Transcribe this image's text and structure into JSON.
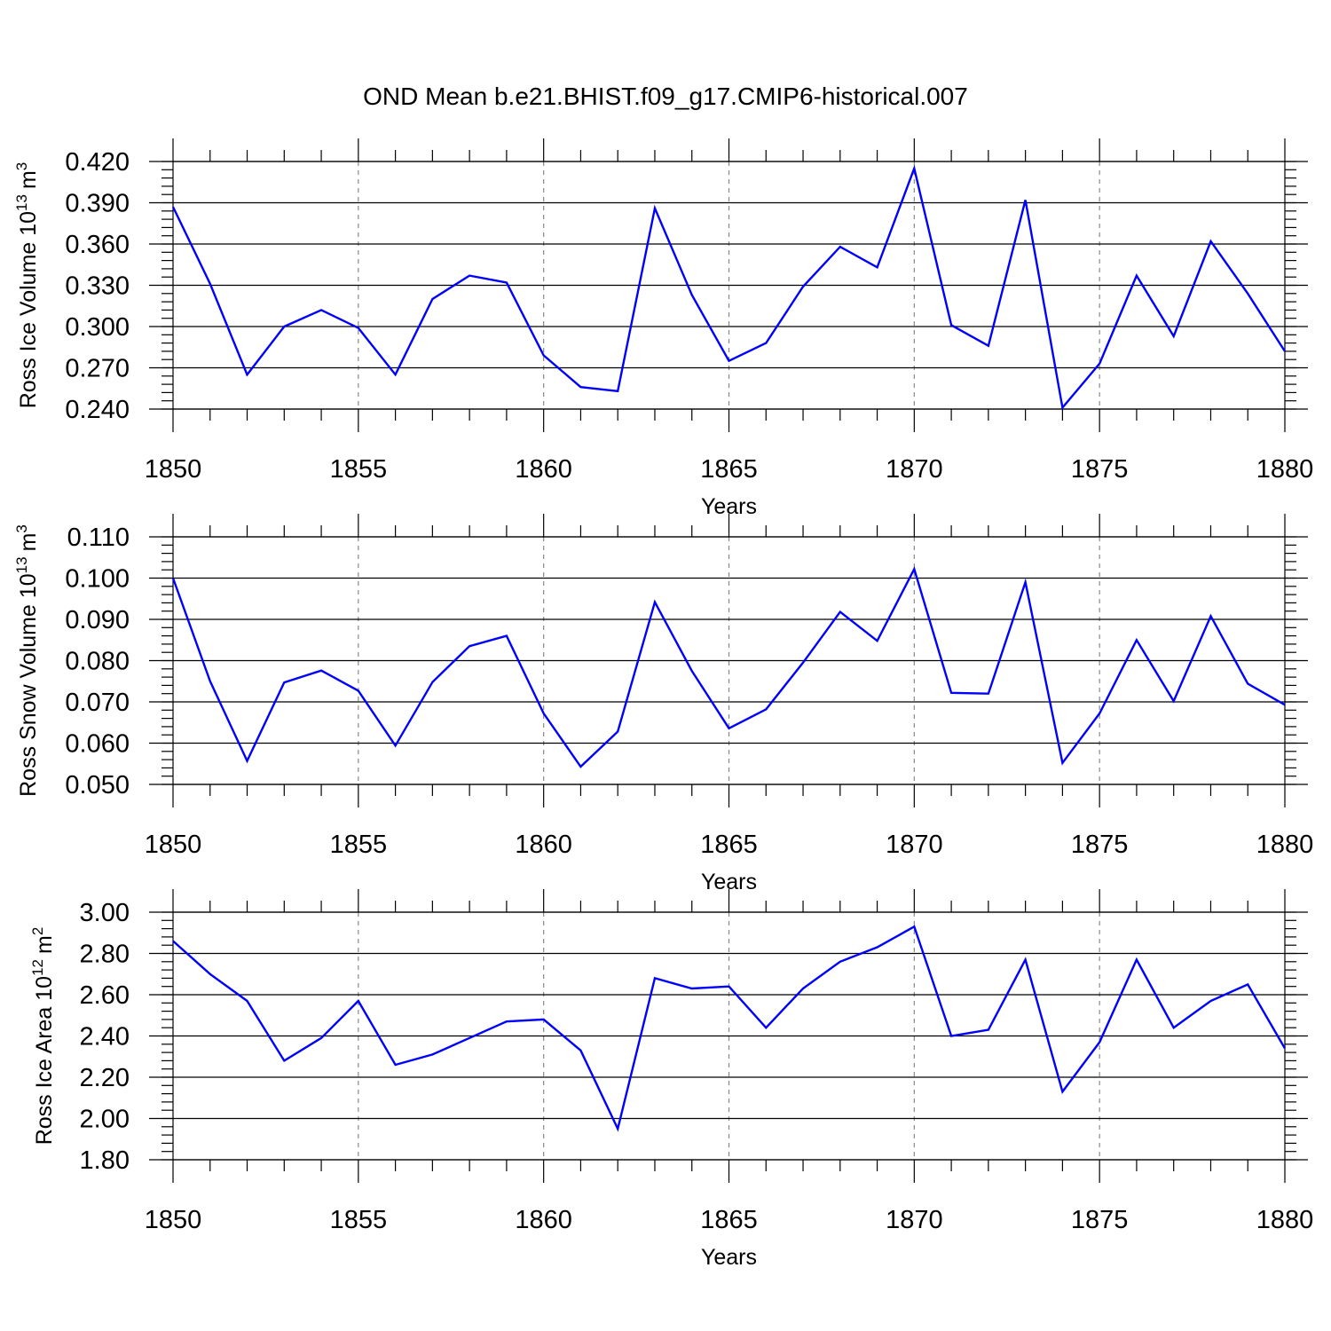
{
  "figure": {
    "title": "OND Mean b.e21.BHIST.f09_g17.CMIP6-historical.007"
  },
  "chart_data": [
    {
      "type": "line",
      "ylabel_main": "Ross Ice Volume 10",
      "ylabel_sup": "13",
      "ylabel_unit": "m",
      "ylabel_unit_sup": "3",
      "xlabel": "Years",
      "xlim": [
        1850,
        1880
      ],
      "ylim": [
        0.24,
        0.42
      ],
      "yticks": [
        "0.240",
        "0.270",
        "0.300",
        "0.330",
        "0.360",
        "0.390",
        "0.420"
      ],
      "xticks": [
        "1850",
        "1855",
        "1860",
        "1865",
        "1870",
        "1875",
        "1880"
      ],
      "line_color": "#0000ff",
      "x": [
        1850,
        1851,
        1852,
        1853,
        1854,
        1855,
        1856,
        1857,
        1858,
        1859,
        1860,
        1861,
        1862,
        1863,
        1864,
        1865,
        1866,
        1867,
        1868,
        1869,
        1870,
        1871,
        1872,
        1873,
        1874,
        1875,
        1876,
        1877,
        1878,
        1879,
        1880
      ],
      "values": [
        0.387,
        0.331,
        0.265,
        0.3,
        0.312,
        0.299,
        0.265,
        0.32,
        0.337,
        0.332,
        0.279,
        0.256,
        0.253,
        0.386,
        0.323,
        0.275,
        0.288,
        0.329,
        0.358,
        0.343,
        0.415,
        0.301,
        0.286,
        0.392,
        0.241,
        0.273,
        0.337,
        0.293,
        0.362,
        0.324,
        0.282
      ]
    },
    {
      "type": "line",
      "ylabel_main": "Ross Snow Volume 10",
      "ylabel_sup": "13",
      "ylabel_unit": "m",
      "ylabel_unit_sup": "3",
      "xlabel": "Years",
      "xlim": [
        1850,
        1880
      ],
      "ylim": [
        0.05,
        0.11
      ],
      "yticks": [
        "0.050",
        "0.060",
        "0.070",
        "0.080",
        "0.090",
        "0.100",
        "0.110"
      ],
      "xticks": [
        "1850",
        "1855",
        "1860",
        "1865",
        "1870",
        "1875",
        "1880"
      ],
      "line_color": "#0000ff",
      "x": [
        1850,
        1851,
        1852,
        1853,
        1854,
        1855,
        1856,
        1857,
        1858,
        1859,
        1860,
        1861,
        1862,
        1863,
        1864,
        1865,
        1866,
        1867,
        1868,
        1869,
        1870,
        1871,
        1872,
        1873,
        1874,
        1875,
        1876,
        1877,
        1878,
        1879,
        1880
      ],
      "values": [
        0.1,
        0.075,
        0.0557,
        0.0747,
        0.0776,
        0.0727,
        0.0594,
        0.0748,
        0.0835,
        0.086,
        0.0672,
        0.0543,
        0.0628,
        0.0942,
        0.0775,
        0.0636,
        0.0682,
        0.0795,
        0.0918,
        0.0848,
        0.1022,
        0.0722,
        0.072,
        0.099,
        0.0552,
        0.0672,
        0.085,
        0.0702,
        0.0908,
        0.0744,
        0.0693
      ]
    },
    {
      "type": "line",
      "ylabel_main": "Ross Ice Area 10",
      "ylabel_sup": "12",
      "ylabel_unit": "m",
      "ylabel_unit_sup": "2",
      "xlabel": "Years",
      "xlim": [
        1850,
        1880
      ],
      "ylim": [
        1.8,
        3.0
      ],
      "yticks": [
        "1.80",
        "2.00",
        "2.20",
        "2.40",
        "2.60",
        "2.80",
        "3.00"
      ],
      "xticks": [
        "1850",
        "1855",
        "1860",
        "1865",
        "1870",
        "1875",
        "1880"
      ],
      "line_color": "#0000ff",
      "x": [
        1850,
        1851,
        1852,
        1853,
        1854,
        1855,
        1856,
        1857,
        1858,
        1859,
        1860,
        1861,
        1862,
        1863,
        1864,
        1865,
        1866,
        1867,
        1868,
        1869,
        1870,
        1871,
        1872,
        1873,
        1874,
        1875,
        1876,
        1877,
        1878,
        1879,
        1880
      ],
      "values": [
        2.86,
        2.7,
        2.57,
        2.28,
        2.39,
        2.57,
        2.26,
        2.31,
        2.39,
        2.47,
        2.48,
        2.33,
        1.95,
        2.68,
        2.63,
        2.64,
        2.44,
        2.63,
        2.76,
        2.83,
        2.93,
        2.4,
        2.43,
        2.77,
        2.13,
        2.37,
        2.77,
        2.44,
        2.57,
        2.65,
        2.34
      ]
    }
  ]
}
